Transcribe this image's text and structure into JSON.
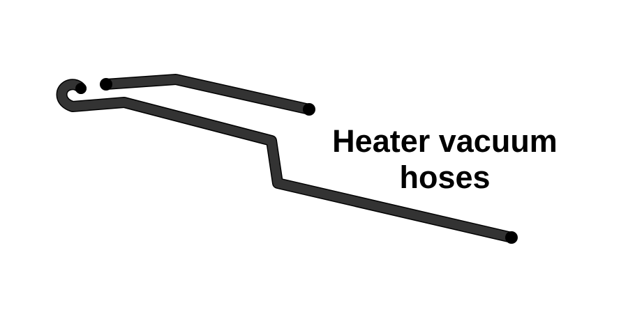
{
  "caption": {
    "line1": "Heater vacuum",
    "line2": "hoses"
  },
  "colors": {
    "hose": "#333333",
    "hose_outline": "#000000",
    "hose_end": "#000000",
    "text": "#000000",
    "background": "#ffffff"
  }
}
